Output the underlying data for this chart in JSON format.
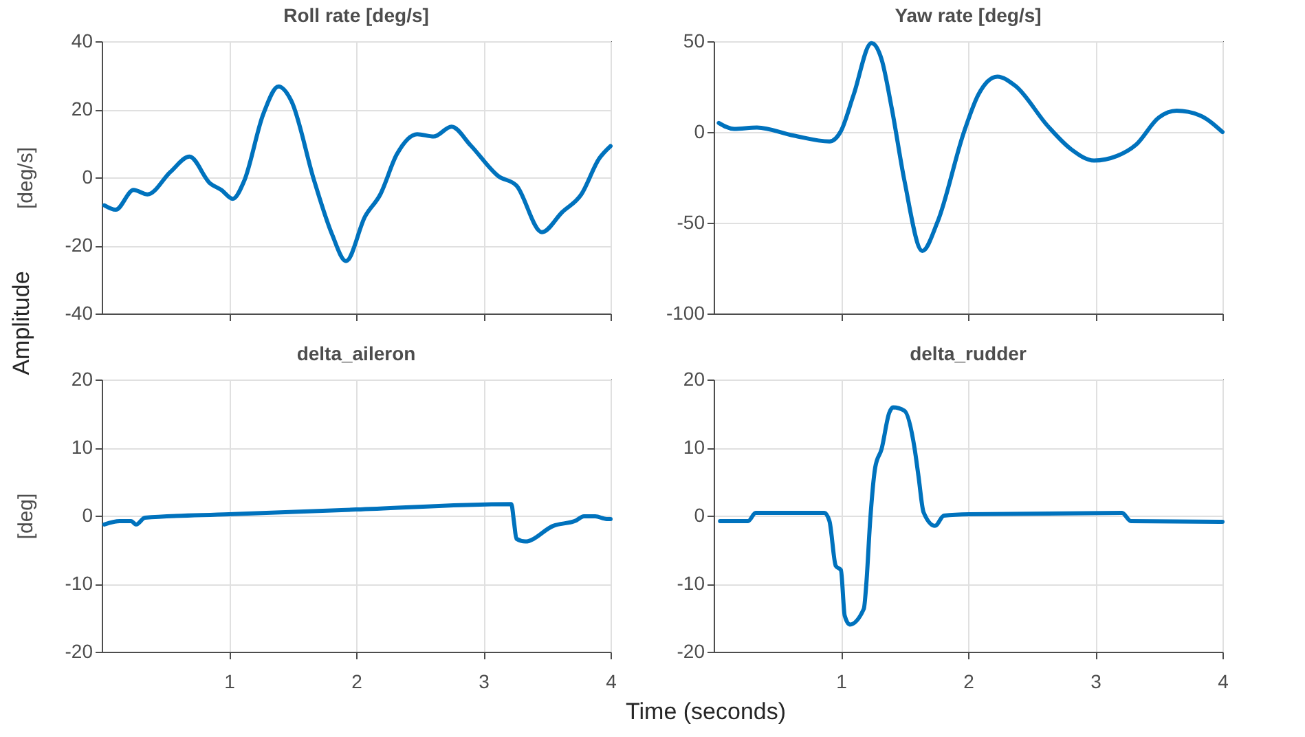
{
  "chart_data": [
    {
      "type": "line",
      "title": "Roll rate [deg/s]",
      "ylabel": "[deg/s]",
      "annotations": [
        "Amplitude"
      ],
      "xlim": [
        0,
        4
      ],
      "xticks": [
        1,
        2,
        3,
        4
      ],
      "ylim": [
        -40,
        40
      ],
      "yticks": [
        -40,
        -20,
        0,
        20,
        40
      ],
      "grid": true,
      "tick_labels": "y",
      "series": [
        {
          "color": "#0072bd",
          "x": [
            0.02,
            0.11,
            0.25,
            0.36,
            0.54,
            0.69,
            0.85,
            0.94,
            1.03,
            1.12,
            1.27,
            1.39,
            1.49,
            1.67,
            1.81,
            1.92,
            2.07,
            2.19,
            2.32,
            2.48,
            2.61,
            2.75,
            2.9,
            3.12,
            3.26,
            3.46,
            3.62,
            3.77,
            3.91,
            4.0
          ],
          "values": [
            -8.2,
            -9.5,
            -3.7,
            -5,
            1.6,
            6.1,
            -1.7,
            -3.7,
            -6.3,
            -1,
            18.6,
            26.7,
            22.5,
            -1,
            -16.7,
            -24.6,
            -11.5,
            -5,
            6.8,
            12.7,
            12,
            14.9,
            9.4,
            0.3,
            -2.4,
            -16.1,
            -10.2,
            -5,
            5.5,
            9.2
          ]
        }
      ]
    },
    {
      "type": "line",
      "title": "Yaw rate [deg/s]",
      "xlim": [
        0,
        4
      ],
      "xticks": [
        1,
        2,
        3,
        4
      ],
      "ylim": [
        -100,
        50
      ],
      "yticks": [
        -100,
        -50,
        0,
        50
      ],
      "grid": true,
      "tick_labels": "y",
      "series": [
        {
          "color": "#0072bd",
          "x": [
            0.04,
            0.16,
            0.34,
            0.63,
            0.91,
            1.0,
            1.1,
            1.24,
            1.32,
            1.4,
            1.5,
            1.64,
            1.76,
            1.97,
            2.08,
            2.23,
            2.37,
            2.63,
            2.81,
            2.99,
            3.17,
            3.32,
            3.5,
            3.64,
            3.82,
            4.0
          ],
          "values": [
            5,
            1.7,
            2.5,
            -2,
            -5.2,
            0.5,
            20.5,
            49,
            40,
            13,
            -27,
            -65.5,
            -49.5,
            0.5,
            20.5,
            30.5,
            25.5,
            3,
            -9.5,
            -15.7,
            -13.2,
            -7,
            8,
            11.7,
            9.2,
            0
          ]
        }
      ]
    },
    {
      "type": "line",
      "title": "delta_aileron",
      "ylabel": "[deg]",
      "annotations": [
        "Time (seconds)"
      ],
      "xlim": [
        0,
        4
      ],
      "xticks": [
        1,
        2,
        3,
        4
      ],
      "ylim": [
        -20,
        20
      ],
      "yticks": [
        -20,
        -10,
        0,
        10,
        20
      ],
      "grid": true,
      "series": [
        {
          "color": "#0072bd",
          "x": [
            0.02,
            0.14,
            0.23,
            0.27,
            0.34,
            1.0,
            2.0,
            3.22,
            3.24,
            3.26,
            3.33,
            3.55,
            3.73,
            3.79,
            3.88,
            3.97,
            4.0
          ],
          "values": [
            -1.3,
            -0.8,
            -0.8,
            -1.3,
            -0.3,
            0.2,
            0.9,
            1.7,
            -0.8,
            -3.4,
            -3.8,
            -1.5,
            -0.7,
            -0.1,
            -0.1,
            -0.5,
            -0.5
          ]
        }
      ]
    },
    {
      "type": "line",
      "title": "delta_rudder",
      "xlim": [
        0,
        4
      ],
      "xticks": [
        1,
        2,
        3,
        4
      ],
      "ylim": [
        -20,
        20
      ],
      "yticks": [
        -20,
        -10,
        0,
        10,
        20
      ],
      "grid": true,
      "series": [
        {
          "color": "#0072bd",
          "x": [
            0.05,
            0.27,
            0.33,
            0.87,
            0.91,
            0.96,
            1.0,
            1.03,
            1.07,
            1.18,
            1.2,
            1.23,
            1.27,
            1.32,
            1.38,
            1.41,
            1.5,
            1.58,
            1.61,
            1.65,
            1.74,
            1.81,
            2.01,
            3.21,
            3.28,
            4.0
          ],
          "values": [
            -0.8,
            -0.8,
            0.4,
            0.4,
            -0.8,
            -7.4,
            -8,
            -14.7,
            -16,
            -13.7,
            -10,
            -0.8,
            7.1,
            9.8,
            15.1,
            15.9,
            15.4,
            9.8,
            5.8,
            0.5,
            -1.5,
            0,
            0.2,
            0.4,
            -0.8,
            -0.9
          ]
        }
      ]
    }
  ]
}
